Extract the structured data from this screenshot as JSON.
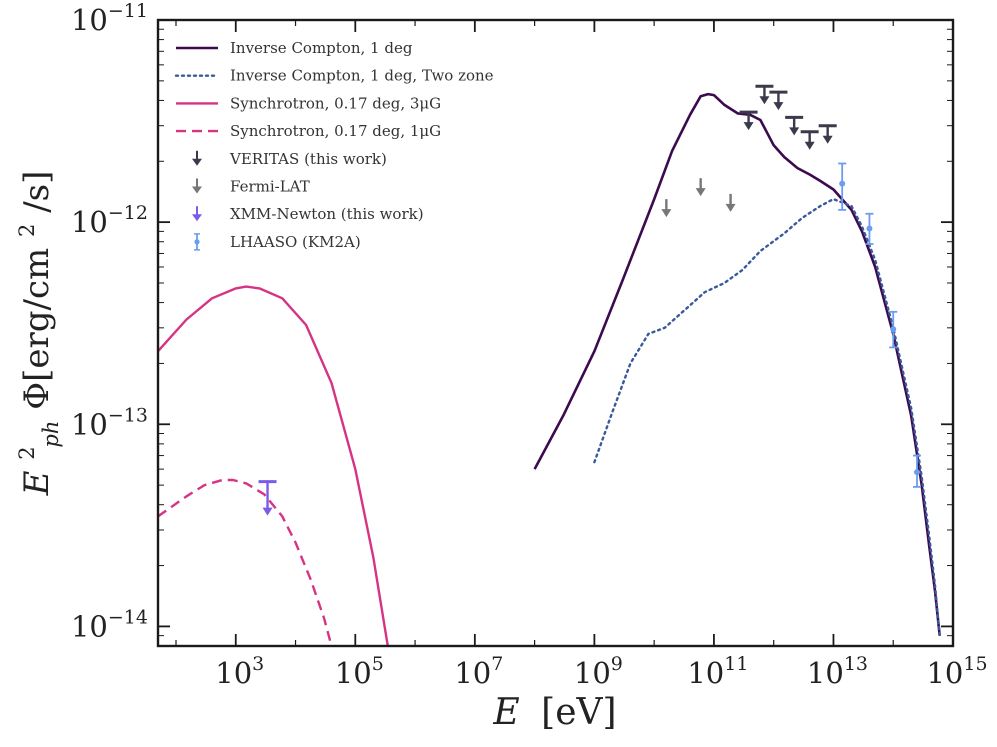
{
  "chart_data": {
    "type": "line",
    "xscale": "log",
    "yscale": "log",
    "xlim": [
      50,
      1000000000000000.0
    ],
    "ylim": [
      8e-15,
      1e-11
    ],
    "xlabel": {
      "var": "E",
      "unit": "[eV]"
    },
    "ylabel": {
      "base": "E",
      "sup": "2",
      "sub": "ph",
      "rest": " Φ[erg/cm",
      "rest_sup": "2",
      "rest_end": "/s]"
    },
    "xticks": [
      {
        "value": 1000,
        "base": "10",
        "exp": "3"
      },
      {
        "value": 100000,
        "base": "10",
        "exp": "5"
      },
      {
        "value": 10000000,
        "base": "10",
        "exp": "7"
      },
      {
        "value": 1000000000,
        "base": "10",
        "exp": "9"
      },
      {
        "value": 100000000000,
        "base": "10",
        "exp": "11"
      },
      {
        "value": 10000000000000,
        "base": "10",
        "exp": "13"
      },
      {
        "value": 1000000000000000,
        "base": "10",
        "exp": "15"
      }
    ],
    "yticks": [
      {
        "value": 1e-14,
        "base": "10",
        "exp": "−14"
      },
      {
        "value": 1e-13,
        "base": "10",
        "exp": "−13"
      },
      {
        "value": 1e-12,
        "base": "10",
        "exp": "−12"
      },
      {
        "value": 1e-11,
        "base": "10",
        "exp": "−11"
      }
    ],
    "legend_position": "top-left",
    "series": [
      {
        "name": "Inverse Compton, 1 deg",
        "style": "solid",
        "color": "#3b0a4f",
        "width": 2.6,
        "points": [
          [
            100000000.0,
            6e-14
          ],
          [
            300000000.0,
            1.1e-13
          ],
          [
            1000000000.0,
            2.3e-13
          ],
          [
            3000000000.0,
            5.2e-13
          ],
          [
            10000000000.0,
            1.3e-12
          ],
          [
            20000000000.0,
            2.25e-12
          ],
          [
            40000000000.0,
            3.4e-12
          ],
          [
            60000000000.0,
            4.2e-12
          ],
          [
            80000000000.0,
            4.3e-12
          ],
          [
            100000000000.0,
            4.25e-12
          ],
          [
            150000000000.0,
            3.8e-12
          ],
          [
            250000000000.0,
            3.45e-12
          ],
          [
            400000000000.0,
            3.4e-12
          ],
          [
            600000000000.0,
            3.2e-12
          ],
          [
            1000000000000.0,
            2.4e-12
          ],
          [
            1500000000000.0,
            2.1e-12
          ],
          [
            2500000000000.0,
            1.85e-12
          ],
          [
            4000000000000.0,
            1.72e-12
          ],
          [
            6000000000000.0,
            1.6e-12
          ],
          [
            10000000000000.0,
            1.45e-12
          ],
          [
            20000000000000.0,
            1.15e-12
          ],
          [
            30000000000000.0,
            9e-13
          ],
          [
            50000000000000.0,
            6e-13
          ],
          [
            100000000000000.0,
            2.8e-13
          ],
          [
            200000000000000.0,
            1.1e-13
          ],
          [
            300000000000000.0,
            5e-14
          ],
          [
            400000000000000.0,
            2.5e-14
          ],
          [
            500000000000000.0,
            1.5e-14
          ],
          [
            600000000000000.0,
            9e-15
          ]
        ]
      },
      {
        "name": "Inverse Compton, 1 deg, Two zone",
        "style": "dotted",
        "color": "#3b5a9a",
        "width": 2.4,
        "points": [
          [
            1000000000.0,
            6.5e-14
          ],
          [
            2000000000.0,
            1.15e-13
          ],
          [
            4000000000.0,
            2e-13
          ],
          [
            8000000000.0,
            2.8e-13
          ],
          [
            15000000000.0,
            3e-13
          ],
          [
            30000000000.0,
            3.6e-13
          ],
          [
            70000000000.0,
            4.5e-13
          ],
          [
            150000000000.0,
            5e-13
          ],
          [
            300000000000.0,
            5.8e-13
          ],
          [
            600000000000.0,
            7.2e-13
          ],
          [
            1500000000000.0,
            8.8e-13
          ],
          [
            3000000000000.0,
            1.05e-12
          ],
          [
            6000000000000.0,
            1.2e-12
          ],
          [
            10000000000000.0,
            1.3e-12
          ],
          [
            20000000000000.0,
            1.2e-12
          ],
          [
            30000000000000.0,
            9.5e-13
          ],
          [
            50000000000000.0,
            6.5e-13
          ],
          [
            100000000000000.0,
            3e-13
          ],
          [
            200000000000000.0,
            1.2e-13
          ],
          [
            300000000000000.0,
            5.5e-14
          ],
          [
            400000000000000.0,
            2.8e-14
          ],
          [
            500000000000000.0,
            1.6e-14
          ],
          [
            600000000000000.0,
            9e-15
          ]
        ]
      },
      {
        "name": "Synchrotron, 0.17 deg, 3μG",
        "style": "solid",
        "color": "#d63384",
        "width": 2.4,
        "points": [
          [
            50,
            2.3e-13
          ],
          [
            150,
            3.3e-13
          ],
          [
            400,
            4.2e-13
          ],
          [
            1000,
            4.7e-13
          ],
          [
            1500,
            4.8e-13
          ],
          [
            2500,
            4.7e-13
          ],
          [
            6000,
            4.2e-13
          ],
          [
            15000,
            3.1e-13
          ],
          [
            40000,
            1.6e-13
          ],
          [
            100000,
            6e-14
          ],
          [
            200000,
            2.2e-14
          ],
          [
            350000,
            8e-15
          ]
        ]
      },
      {
        "name": "Synchrotron, 0.17 deg, 1μG",
        "style": "dashed",
        "color": "#d63384",
        "width": 2.4,
        "points": [
          [
            50,
            3.5e-14
          ],
          [
            150,
            4.4e-14
          ],
          [
            300,
            5e-14
          ],
          [
            600,
            5.3e-14
          ],
          [
            900,
            5.3e-14
          ],
          [
            1500,
            5.1e-14
          ],
          [
            3000,
            4.5e-14
          ],
          [
            6000,
            3.5e-14
          ],
          [
            10000,
            2.6e-14
          ],
          [
            18000,
            1.7e-14
          ],
          [
            30000,
            1.1e-14
          ],
          [
            40000,
            8e-15
          ]
        ]
      }
    ],
    "upper_limits": [
      {
        "group": "VERITAS (this work)",
        "color": "#3a3a4a",
        "cap": true,
        "points": [
          [
            380000000000.0,
            3.5e-12
          ],
          [
            700000000000.0,
            4.7e-12
          ],
          [
            1200000000000.0,
            4.4e-12
          ],
          [
            2200000000000.0,
            3.3e-12
          ],
          [
            4000000000000.0,
            2.8e-12
          ],
          [
            8000000000000.0,
            3e-12
          ]
        ]
      },
      {
        "group": "Fermi-LAT",
        "color": "#777777",
        "cap": false,
        "points": [
          [
            16000000000.0,
            1.3e-12
          ],
          [
            60000000000.0,
            1.65e-12
          ],
          [
            190000000000.0,
            1.38e-12
          ]
        ]
      },
      {
        "group": "XMM-Newton (this work)",
        "color": "#7b5ce8",
        "cap": true,
        "points": [
          [
            3400,
            5.2e-14
          ]
        ]
      }
    ],
    "errorbars": [
      {
        "group": "LHAASO (KM2A)",
        "color": "#6a9cf0",
        "points": [
          [
            14000000000000.0,
            1.55e-12,
            1.95e-12,
            1.15e-12
          ],
          [
            40000000000000.0,
            9.3e-13,
            1.1e-12,
            7.8e-13
          ],
          [
            100000000000000.0,
            2.95e-13,
            3.6e-13,
            2.4e-13
          ],
          [
            250000000000000.0,
            5.8e-14,
            7e-14,
            4.9e-14
          ]
        ]
      }
    ],
    "legend": [
      {
        "label": "Inverse Compton, 1 deg",
        "kind": "solid",
        "color": "#3b0a4f"
      },
      {
        "label": "Inverse Compton, 1 deg, Two zone",
        "kind": "dotted",
        "color": "#3b5a9a"
      },
      {
        "label": "Synchrotron, 0.17 deg, 3μG",
        "kind": "solid",
        "color": "#d63384"
      },
      {
        "label": "Synchrotron, 0.17 deg, 1μG",
        "kind": "dashed",
        "color": "#d63384"
      },
      {
        "label": "VERITAS (this work)",
        "kind": "arrow",
        "color": "#3a3a4a"
      },
      {
        "label": "Fermi-LAT",
        "kind": "arrow",
        "color": "#777777"
      },
      {
        "label": "XMM-Newton (this work)",
        "kind": "arrow",
        "color": "#7b5ce8"
      },
      {
        "label": "LHAASO (KM2A)",
        "kind": "errorbar",
        "color": "#6a9cf0"
      }
    ]
  }
}
